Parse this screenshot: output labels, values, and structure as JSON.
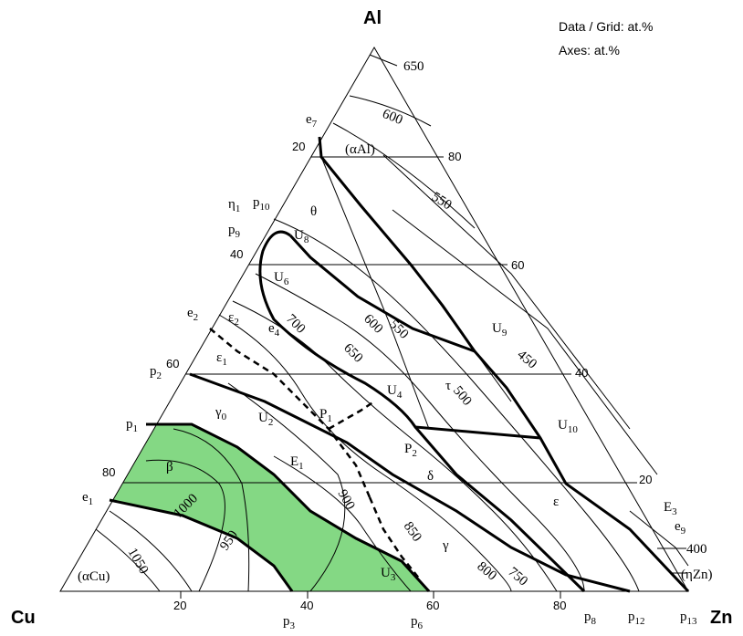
{
  "header": {
    "top_vertex": "Al",
    "left_vertex": "Cu",
    "right_vertex": "Zn"
  },
  "notes": [
    "Data / Grid: at.%",
    "Axes: at.%"
  ],
  "axis_ticks": {
    "left": [
      "20",
      "40",
      "60",
      "80"
    ],
    "right": [
      "80",
      "60",
      "40",
      "20"
    ],
    "bottom": [
      "20",
      "40",
      "60",
      "80"
    ]
  },
  "phases": [
    "(αAl)",
    "θ",
    "τ",
    "δ",
    "ε",
    "γ",
    "γ",
    "β",
    "(αCu)",
    "(ηZn)"
  ],
  "phase_subs": [
    {
      "base": "γ",
      "sub": "0"
    },
    {
      "base": "ε",
      "sub": "1"
    },
    {
      "base": "ε",
      "sub": "2"
    },
    {
      "base": "E",
      "sub": "1"
    }
  ],
  "isotherms": [
    "650",
    "600",
    "550",
    "700",
    "650",
    "600",
    "550",
    "450",
    "500",
    "1000",
    "950",
    "900",
    "850",
    "800",
    "750",
    "1050",
    "400"
  ],
  "points": [
    {
      "base": "e",
      "sub": "7"
    },
    {
      "base": "η",
      "sub": "1"
    },
    {
      "base": "p",
      "sub": "10"
    },
    {
      "base": "p",
      "sub": "9"
    },
    {
      "base": "U",
      "sub": "8"
    },
    {
      "base": "U",
      "sub": "6"
    },
    {
      "base": "e",
      "sub": "2"
    },
    {
      "base": "e",
      "sub": "4"
    },
    {
      "base": "p",
      "sub": "2"
    },
    {
      "base": "U",
      "sub": "2"
    },
    {
      "base": "P",
      "sub": "1"
    },
    {
      "base": "U",
      "sub": "4"
    },
    {
      "base": "U",
      "sub": "9"
    },
    {
      "base": "U",
      "sub": "10"
    },
    {
      "base": "P",
      "sub": "2"
    },
    {
      "base": "p",
      "sub": "1"
    },
    {
      "base": "e",
      "sub": "1"
    },
    {
      "base": "U",
      "sub": "3"
    },
    {
      "base": "p",
      "sub": "3"
    },
    {
      "base": "p",
      "sub": "6"
    },
    {
      "base": "p",
      "sub": "8"
    },
    {
      "base": "p",
      "sub": "12"
    },
    {
      "base": "p",
      "sub": "13"
    },
    {
      "base": "E",
      "sub": "3"
    },
    {
      "base": "e",
      "sub": "9"
    }
  ]
}
